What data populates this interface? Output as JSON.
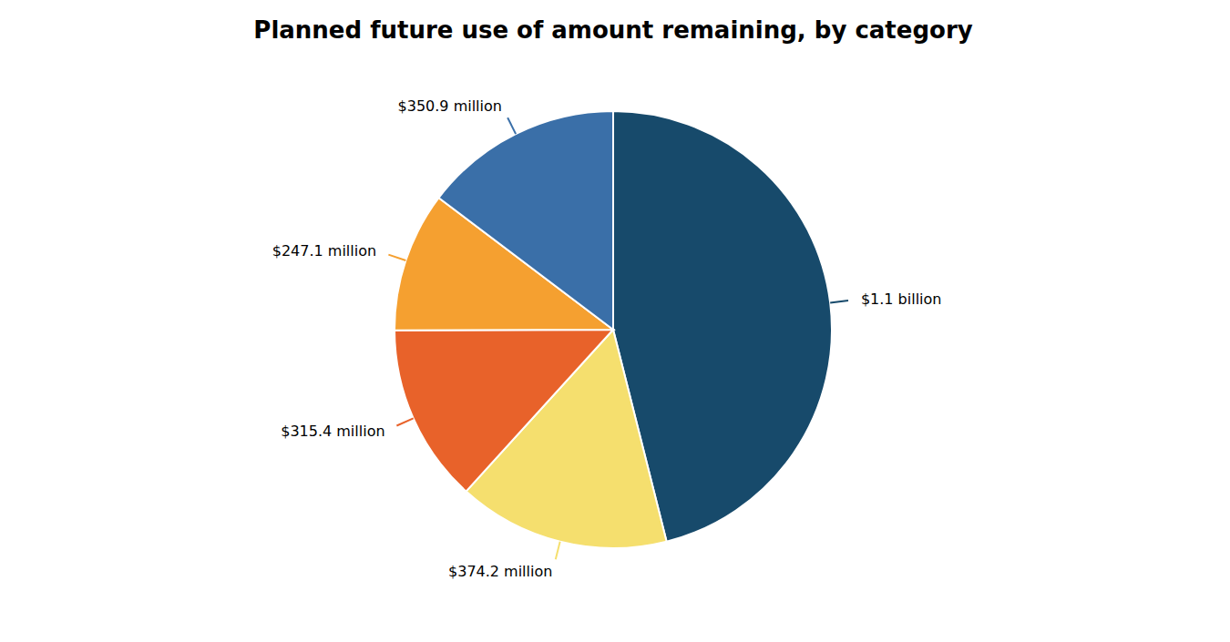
{
  "chart_data": {
    "type": "pie",
    "title": "Planned future use of amount remaining, by category",
    "values": [
      1100.0,
      374.2,
      315.4,
      247.1,
      350.9
    ],
    "value_labels": [
      "$1.1 billion",
      "$374.2 million",
      "$315.4 million",
      "$247.1 million",
      "$350.9 million"
    ],
    "colors": [
      "#174a6b",
      "#f5df6e",
      "#e8622a",
      "#f5a030",
      "#3a6fa8"
    ],
    "data_labels": true
  }
}
